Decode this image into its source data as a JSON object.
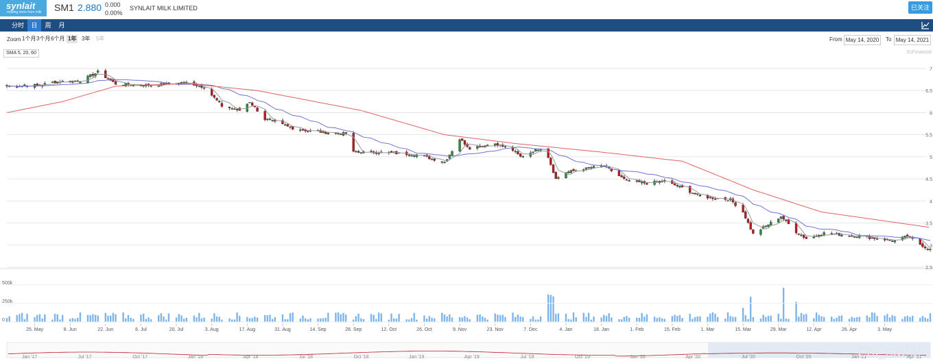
{
  "header": {
    "logo_name": "synlait",
    "logo_tagline": "making more from milk",
    "ticker": "SM1",
    "price": "2.880",
    "change": "0.000",
    "change_pct": "0.00%",
    "company_name": "SYNLAIT MILK LIMITED",
    "follow_label": "已关注"
  },
  "nav": {
    "tabs": [
      {
        "label": "分时",
        "active": false
      },
      {
        "label": "日",
        "active": true
      },
      {
        "label": "周",
        "active": false
      },
      {
        "label": "月",
        "active": false
      }
    ],
    "chart_icon": "line-chart-icon"
  },
  "controls": {
    "zoom_label": "Zoom",
    "zoom_options": [
      {
        "label": "1个月",
        "state": "normal"
      },
      {
        "label": "3个月",
        "state": "normal"
      },
      {
        "label": "6个月",
        "state": "normal"
      },
      {
        "label": "1年",
        "state": "selected"
      },
      {
        "label": "3年",
        "state": "normal"
      },
      {
        "label": "5年",
        "state": "disabled"
      }
    ],
    "from_label": "From",
    "from_value": "May 14, 2020",
    "to_label": "To",
    "to_value": "May 14, 2021"
  },
  "legend": {
    "sma": "SMA 5, 20, 60"
  },
  "credit": "61Financial",
  "watermark": "Chi_na2ai",
  "colors": {
    "up": "#2e8b3a",
    "down": "#c0181f",
    "sma5": "#999999",
    "sma20": "#6c72d6",
    "sma60": "#e06060",
    "volume": "#7cb5ec",
    "nav": "#1e4d82",
    "accent": "#2f7dd1"
  },
  "chart_data": {
    "type": "candlestick",
    "ylim": [
      2.5,
      7.0
    ],
    "y_ticks": [
      "7",
      "6.5",
      "6",
      "5.5",
      "5",
      "4.5",
      "4",
      "3.5",
      "3",
      "2.5"
    ],
    "price_anchors": [
      {
        "x": "2020-05-14",
        "y": 6.6
      },
      {
        "x": "2020-05-27",
        "y": 6.62
      },
      {
        "x": "2020-06-02",
        "y": 6.7
      },
      {
        "x": "2020-06-12",
        "y": 6.72
      },
      {
        "x": "2020-06-19",
        "y": 6.92
      },
      {
        "x": "2020-06-26",
        "y": 6.65
      },
      {
        "x": "2020-07-10",
        "y": 6.62
      },
      {
        "x": "2020-07-24",
        "y": 6.68
      },
      {
        "x": "2020-07-31",
        "y": 6.58
      },
      {
        "x": "2020-08-07",
        "y": 6.15
      },
      {
        "x": "2020-08-14",
        "y": 6.05
      },
      {
        "x": "2020-08-18",
        "y": 6.25
      },
      {
        "x": "2020-08-24",
        "y": 5.85
      },
      {
        "x": "2020-09-04",
        "y": 5.65
      },
      {
        "x": "2020-09-11",
        "y": 5.58
      },
      {
        "x": "2020-09-25",
        "y": 5.52
      },
      {
        "x": "2020-09-28",
        "y": 5.1
      },
      {
        "x": "2020-10-09",
        "y": 5.1
      },
      {
        "x": "2020-10-23",
        "y": 5.05
      },
      {
        "x": "2020-11-03",
        "y": 4.88
      },
      {
        "x": "2020-11-09",
        "y": 5.4
      },
      {
        "x": "2020-11-13",
        "y": 5.2
      },
      {
        "x": "2020-11-23",
        "y": 5.3
      },
      {
        "x": "2020-11-30",
        "y": 5.15
      },
      {
        "x": "2020-12-03",
        "y": 5.0
      },
      {
        "x": "2020-12-11",
        "y": 5.2
      },
      {
        "x": "2020-12-14",
        "y": 5.0
      },
      {
        "x": "2020-12-17",
        "y": 4.5
      },
      {
        "x": "2020-12-21",
        "y": 4.65
      },
      {
        "x": "2021-01-05",
        "y": 4.8
      },
      {
        "x": "2021-01-14",
        "y": 4.45
      },
      {
        "x": "2021-01-22",
        "y": 4.4
      },
      {
        "x": "2021-01-28",
        "y": 4.45
      },
      {
        "x": "2021-02-05",
        "y": 4.3
      },
      {
        "x": "2021-02-12",
        "y": 4.1
      },
      {
        "x": "2021-02-24",
        "y": 4.03
      },
      {
        "x": "2021-03-01",
        "y": 3.75
      },
      {
        "x": "2021-03-05",
        "y": 3.25
      },
      {
        "x": "2021-03-16",
        "y": 3.65
      },
      {
        "x": "2021-03-22",
        "y": 3.3
      },
      {
        "x": "2021-03-26",
        "y": 3.15
      },
      {
        "x": "2021-04-02",
        "y": 3.27
      },
      {
        "x": "2021-04-16",
        "y": 3.2
      },
      {
        "x": "2021-04-30",
        "y": 3.1
      },
      {
        "x": "2021-05-05",
        "y": 3.2
      },
      {
        "x": "2021-05-14",
        "y": 2.88
      }
    ],
    "sma60_anchors": [
      {
        "x": "2020-05-14",
        "y": 6.0
      },
      {
        "x": "2020-06-05",
        "y": 6.25
      },
      {
        "x": "2020-06-26",
        "y": 6.6
      },
      {
        "x": "2020-07-24",
        "y": 6.66
      },
      {
        "x": "2020-08-21",
        "y": 6.5
      },
      {
        "x": "2020-10-01",
        "y": 6.05
      },
      {
        "x": "2020-11-03",
        "y": 5.5
      },
      {
        "x": "2020-12-01",
        "y": 5.3
      },
      {
        "x": "2021-01-05",
        "y": 5.1
      },
      {
        "x": "2021-02-05",
        "y": 4.9
      },
      {
        "x": "2021-03-05",
        "y": 4.25
      },
      {
        "x": "2021-04-01",
        "y": 3.75
      },
      {
        "x": "2021-05-14",
        "y": 3.4
      }
    ],
    "x_tick_labels": [
      "25. May",
      "8. Jun",
      "22. Jun",
      "6. Jul",
      "20. Jul",
      "3. Aug",
      "17. Aug",
      "31. Aug",
      "14. Sep",
      "28. Sep",
      "12. Oct",
      "26. Oct",
      "9. Nov",
      "23. Nov",
      "7. Dec",
      "4. Jan",
      "18. Jan",
      "1. Feb",
      "15. Feb",
      "1. Mar",
      "15. Mar",
      "29. Mar",
      "12. Apr",
      "26. Apr",
      "3. May"
    ],
    "volume": {
      "ylim": [
        0,
        600000
      ],
      "y_ticks": [
        "500k",
        "250k",
        "0"
      ],
      "spikes": [
        {
          "x": "2020-12-14",
          "value": 370000
        },
        {
          "x": "2020-12-15",
          "value": 365000
        },
        {
          "x": "2020-12-16",
          "value": 345000
        },
        {
          "x": "2021-03-01",
          "value": 190000
        },
        {
          "x": "2021-03-04",
          "value": 340000
        },
        {
          "x": "2021-03-17",
          "value": 460000
        },
        {
          "x": "2021-03-22",
          "value": 270000
        }
      ],
      "baseline_range": [
        30000,
        130000
      ]
    },
    "navigator": {
      "labels": [
        "Jan '17",
        "Jul '17",
        "Oct '17",
        "Jan '18",
        "Apr '18",
        "Jul '18",
        "Oct '18",
        "Jan '19",
        "Apr '19",
        "Jul '19",
        "Oct '19",
        "Jan '20",
        "Apr '20",
        "Jul '20",
        "Oct '20",
        "Jan '21",
        "Apr '21"
      ]
    }
  }
}
